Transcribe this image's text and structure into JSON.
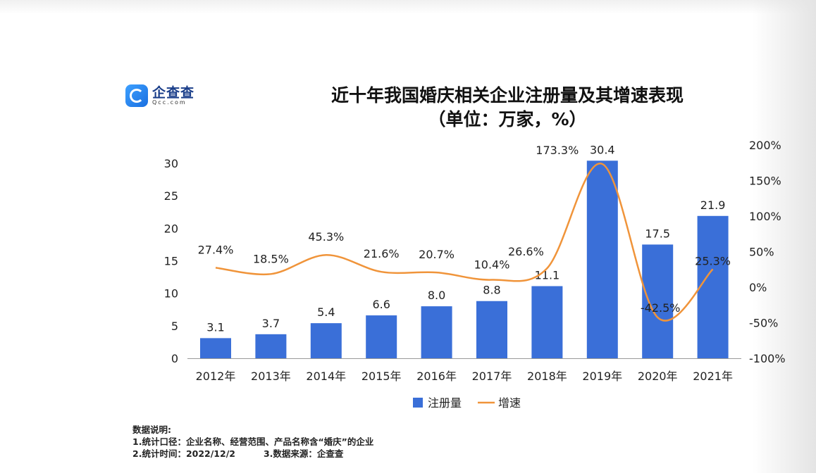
{
  "logo": {
    "name": "企查查",
    "url": "Qcc.com"
  },
  "chart_data": {
    "type": "bar+line",
    "title": "近十年我国婚庆相关企业注册量及其增速表现",
    "subtitle": "（单位：万家，%）",
    "categories": [
      "2012年",
      "2013年",
      "2014年",
      "2015年",
      "2016年",
      "2017年",
      "2018年",
      "2019年",
      "2020年",
      "2021年"
    ],
    "series": [
      {
        "name": "注册量",
        "type": "bar",
        "axis": "left",
        "color": "#3a6fd8",
        "values": [
          3.1,
          3.7,
          5.4,
          6.6,
          8.0,
          8.8,
          11.1,
          30.4,
          17.5,
          21.9
        ],
        "labels": [
          "3.1",
          "3.7",
          "5.4",
          "6.6",
          "8.0",
          "8.8",
          "11.1",
          "30.4",
          "17.5",
          "21.9"
        ]
      },
      {
        "name": "增速",
        "type": "line",
        "axis": "right",
        "color": "#f0943a",
        "values": [
          27.4,
          18.5,
          45.3,
          21.6,
          20.7,
          10.4,
          26.6,
          173.3,
          -42.5,
          25.3
        ],
        "labels": [
          "27.4%",
          "18.5%",
          "45.3%",
          "21.6%",
          "20.7%",
          "10.4%",
          "26.6%",
          "173.3%",
          "-42.5%",
          "25.3%"
        ]
      }
    ],
    "y_left": {
      "ylim": [
        0,
        30
      ],
      "ticks": [
        "0",
        "5",
        "10",
        "15",
        "20",
        "25",
        "30"
      ]
    },
    "y_right": {
      "ylim": [
        -100,
        200
      ],
      "ticks": [
        "-100%",
        "-50%",
        "0%",
        "50%",
        "100%",
        "150%",
        "200%"
      ]
    },
    "grid": false,
    "legend": "bottom-center"
  },
  "notes": {
    "heading": "数据说明:",
    "line1": "1.统计口径：企业名称、经营范围、产品名称含“婚庆”的企业",
    "line2a": "2.统计时间：2022/12/2",
    "line2b": "3.数据来源：企查查"
  }
}
